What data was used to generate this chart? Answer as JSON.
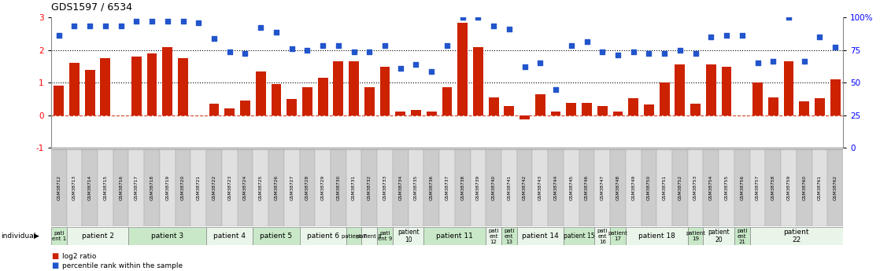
{
  "title": "GDS1597 / 6534",
  "gsm_labels": [
    "GSM38712",
    "GSM38713",
    "GSM38714",
    "GSM38715",
    "GSM38716",
    "GSM38717",
    "GSM38718",
    "GSM38719",
    "GSM38720",
    "GSM38721",
    "GSM38722",
    "GSM38723",
    "GSM38724",
    "GSM38725",
    "GSM38726",
    "GSM38727",
    "GSM38728",
    "GSM38729",
    "GSM38730",
    "GSM38731",
    "GSM38732",
    "GSM38733",
    "GSM38734",
    "GSM38735",
    "GSM38736",
    "GSM38737",
    "GSM38738",
    "GSM38739",
    "GSM38740",
    "GSM38741",
    "GSM38742",
    "GSM38743",
    "GSM38744",
    "GSM38745",
    "GSM38746",
    "GSM38747",
    "GSM38748",
    "GSM38749",
    "GSM38750",
    "GSM38751",
    "GSM38752",
    "GSM38753",
    "GSM38754",
    "GSM38755",
    "GSM38756",
    "GSM38757",
    "GSM38758",
    "GSM38759",
    "GSM38760",
    "GSM38761",
    "GSM38762"
  ],
  "log2_ratio": [
    0.9,
    1.6,
    1.4,
    1.75,
    0.0,
    1.8,
    1.9,
    2.1,
    1.75,
    0.0,
    0.35,
    0.22,
    0.45,
    1.35,
    0.95,
    0.5,
    0.85,
    1.15,
    1.65,
    1.65,
    0.85,
    1.5,
    0.12,
    0.15,
    0.12,
    0.85,
    2.85,
    2.1,
    0.55,
    0.28,
    -0.12,
    0.65,
    0.12,
    0.38,
    0.38,
    0.28,
    0.12,
    0.52,
    0.32,
    1.0,
    1.55,
    0.35,
    1.55,
    1.5,
    0.0,
    1.0,
    0.55,
    1.65,
    0.42,
    0.52,
    1.1
  ],
  "percentile_left_scale": [
    2.45,
    2.75,
    2.75,
    2.75,
    2.75,
    2.9,
    2.9,
    2.9,
    2.9,
    2.85,
    2.35,
    1.95,
    1.9,
    2.7,
    2.55,
    2.05,
    2.0,
    2.15,
    2.15,
    1.95,
    1.95,
    2.15,
    1.45,
    1.55,
    1.35,
    2.15,
    3.0,
    3.0,
    2.75,
    2.65,
    1.5,
    1.6,
    0.8,
    2.15,
    2.25,
    1.95,
    1.85,
    1.95,
    1.9,
    1.9,
    2.0,
    1.9,
    2.4,
    2.45,
    2.45,
    1.6,
    1.65,
    3.0,
    1.65,
    2.4,
    2.1
  ],
  "patients": [
    {
      "label": "pati\nent 1",
      "start": 0,
      "end": 1,
      "color": "#c8e8c8"
    },
    {
      "label": "patient 2",
      "start": 1,
      "end": 5,
      "color": "#eaf5ea"
    },
    {
      "label": "patient 3",
      "start": 5,
      "end": 10,
      "color": "#c8e8c8"
    },
    {
      "label": "patient 4",
      "start": 10,
      "end": 13,
      "color": "#eaf5ea"
    },
    {
      "label": "patient 5",
      "start": 13,
      "end": 16,
      "color": "#c8e8c8"
    },
    {
      "label": "patient 6",
      "start": 16,
      "end": 19,
      "color": "#eaf5ea"
    },
    {
      "label": "patient 7",
      "start": 19,
      "end": 20,
      "color": "#c8e8c8"
    },
    {
      "label": "patient 8",
      "start": 20,
      "end": 21,
      "color": "#eaf5ea"
    },
    {
      "label": "pati\nent 9",
      "start": 21,
      "end": 22,
      "color": "#c8e8c8"
    },
    {
      "label": "patient\n10",
      "start": 22,
      "end": 24,
      "color": "#eaf5ea"
    },
    {
      "label": "patient 11",
      "start": 24,
      "end": 28,
      "color": "#c8e8c8"
    },
    {
      "label": "pati\nent\n12",
      "start": 28,
      "end": 29,
      "color": "#eaf5ea"
    },
    {
      "label": "pati\nent\n13",
      "start": 29,
      "end": 30,
      "color": "#c8e8c8"
    },
    {
      "label": "patient 14",
      "start": 30,
      "end": 33,
      "color": "#eaf5ea"
    },
    {
      "label": "patient 15",
      "start": 33,
      "end": 35,
      "color": "#c8e8c8"
    },
    {
      "label": "pati\nent\n16",
      "start": 35,
      "end": 36,
      "color": "#eaf5ea"
    },
    {
      "label": "patient\n17",
      "start": 36,
      "end": 37,
      "color": "#c8e8c8"
    },
    {
      "label": "patient 18",
      "start": 37,
      "end": 41,
      "color": "#eaf5ea"
    },
    {
      "label": "patient\n19",
      "start": 41,
      "end": 42,
      "color": "#c8e8c8"
    },
    {
      "label": "patient\n20",
      "start": 42,
      "end": 44,
      "color": "#eaf5ea"
    },
    {
      "label": "pati\nent\n21",
      "start": 44,
      "end": 45,
      "color": "#c8e8c8"
    },
    {
      "label": "patient\n22",
      "start": 45,
      "end": 51,
      "color": "#eaf5ea"
    }
  ],
  "bar_color": "#cc2200",
  "scatter_color": "#2255cc",
  "ylim": [
    -1,
    3
  ],
  "dotted_lines": [
    1.0,
    2.0
  ],
  "dashed_line_y": 0.0,
  "bar_width": 0.65
}
